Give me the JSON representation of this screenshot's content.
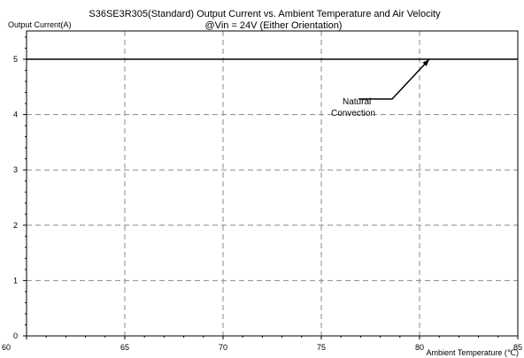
{
  "chart_data": {
    "type": "line",
    "title": "S36SE3R305(Standard)  Output Current vs. Ambient Temperature and Air Velocity",
    "subtitle": "@Vin = 24V (Either Orientation)",
    "ylabel": "Output Current(A)",
    "xlabel": "Ambient Temperature (℃)",
    "xlim": [
      60,
      85
    ],
    "ylim": [
      0,
      5.5
    ],
    "x_ticks": [
      60,
      65,
      70,
      75,
      80,
      85
    ],
    "y_ticks": [
      0,
      1,
      2,
      3,
      4,
      5
    ],
    "grid": true,
    "series": [
      {
        "x": [
          60,
          85
        ],
        "y": [
          5,
          5
        ],
        "color": "#000000"
      }
    ],
    "annotation": {
      "lines": [
        "Natural",
        "Convection"
      ],
      "arrow_target": [
        80.5,
        5.0
      ]
    }
  }
}
